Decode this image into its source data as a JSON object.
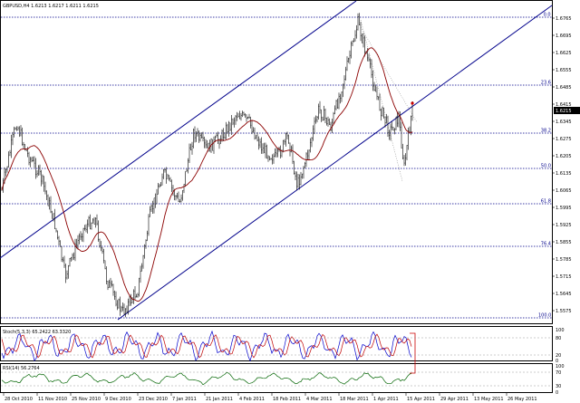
{
  "window": {
    "title": "GBPUSD,H4 1.6213 1.6217 1.6211 1.6215"
  },
  "price_axis": {
    "labels": [
      "1.6765",
      "1.6695",
      "1.6625",
      "1.6555",
      "1.6485",
      "1.6415",
      "1.6345",
      "1.6275",
      "1.6205",
      "1.6135",
      "1.6065",
      "1.5995",
      "1.5925",
      "1.5855",
      "1.5785",
      "1.5715",
      "1.5645",
      "1.5575"
    ],
    "current_price": "1.6215"
  },
  "fib_levels": [
    {
      "label": "0.0"
    },
    {
      "label": "23.6"
    },
    {
      "label": "38.2"
    },
    {
      "label": "50.0"
    },
    {
      "label": "61.8"
    },
    {
      "label": "76.4"
    },
    {
      "label": "100.0"
    }
  ],
  "time_axis": {
    "labels": [
      "28 Oct 2010",
      "11 Nov 2010",
      "25 Nov 2010",
      "9 Dec 2010",
      "23 Dec 2010",
      "7 Jan 2011",
      "21 Jan 2011",
      "4 Feb 2011",
      "18 Feb 2011",
      "4 Mar 2011",
      "18 Mar 2011",
      "1 Apr 2011",
      "15 Apr 2011",
      "29 Apr 2011",
      "13 May 2011",
      "26 May 2011"
    ]
  },
  "indicators": {
    "stoch_label": "Stoch(5,3,3) 65.2422 63.3320",
    "stoch_scale": [
      "100",
      "80",
      "20",
      "0"
    ],
    "rsi_label": "RSI(14) 56.2764",
    "rsi_scale": [
      "100",
      "70",
      "30",
      "0"
    ]
  },
  "colors": {
    "price_bars": "#000000",
    "ma_line": "#8b0000",
    "channel": "#00008b",
    "fib": "#00008b",
    "stoch_main": "#0000cd",
    "stoch_signal": "#c00000",
    "rsi": "#006400",
    "annotation": "#cc0000"
  }
}
